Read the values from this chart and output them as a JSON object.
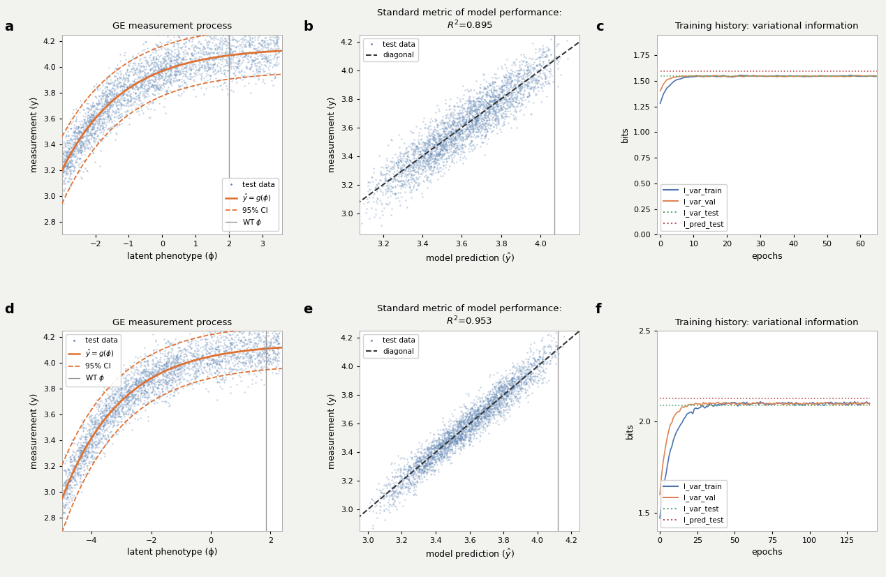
{
  "fig_bg": "#f2f2ee",
  "panel_labels": [
    "a",
    "b",
    "c",
    "d",
    "e",
    "f"
  ],
  "panel_label_fontsize": 14,
  "plot_a": {
    "title": "GE measurement process",
    "xlabel": "latent phenotype (ϕ)",
    "ylabel": "measurement (y)",
    "xlim": [
      -3.0,
      3.6
    ],
    "ylim": [
      2.7,
      4.25
    ],
    "xticks": [
      -2,
      -1,
      0,
      1,
      2,
      3
    ],
    "scatter_color": "#5b82b0",
    "scatter_alpha": 0.35,
    "scatter_s": 3,
    "curve_color": "#e07030",
    "ci_color": "#e07030",
    "wt_x": 2.0,
    "wt_color": "#999999",
    "n_points": 3000,
    "seed": 42,
    "legend_loc": "lower right"
  },
  "plot_b": {
    "title": "Standard metric of model performance:\n$R^2$=0.895",
    "xlabel": "model prediction ($\\hat{y}$)",
    "ylabel": "measurement (y)",
    "xlim": [
      3.08,
      4.2
    ],
    "ylim": [
      2.85,
      4.25
    ],
    "xticks": [
      3.2,
      3.4,
      3.6,
      3.8,
      4.0
    ],
    "scatter_color": "#5b82b0",
    "scatter_alpha": 0.35,
    "scatter_s": 3,
    "diag_color": "#333333",
    "wt_x": 4.07,
    "wt_color": "#999999",
    "n_points": 3000,
    "seed": 43,
    "legend_loc": "upper left"
  },
  "plot_c": {
    "title": "Training history: variational information",
    "xlabel": "epochs",
    "ylabel": "bits",
    "xlim": [
      -1,
      65
    ],
    "ylim": [
      0.0,
      1.95
    ],
    "yticks": [
      0.0,
      0.25,
      0.5,
      0.75,
      1.0,
      1.25,
      1.5,
      1.75
    ],
    "xticks": [
      0,
      10,
      20,
      30,
      40,
      50,
      60
    ],
    "train_color": "#4c72b0",
    "val_color": "#dd8452",
    "test_color": "#55a868",
    "pred_color": "#c44e52",
    "train_start": 1.28,
    "train_plateau": 1.545,
    "val_start": 1.4,
    "val_plateau": 1.545,
    "test_val": 1.545,
    "pred_val": 1.595,
    "n_epochs": 65,
    "legend_loc": "lower left"
  },
  "plot_d": {
    "title": "GE measurement process",
    "xlabel": "latent phenotype (ϕ)",
    "ylabel": "measurement (y)",
    "xlim": [
      -5.0,
      2.4
    ],
    "ylim": [
      2.7,
      4.25
    ],
    "xticks": [
      -4,
      -2,
      0,
      2
    ],
    "scatter_color": "#5b82b0",
    "scatter_alpha": 0.35,
    "scatter_s": 3,
    "curve_color": "#e07030",
    "ci_color": "#e07030",
    "wt_x": 1.85,
    "wt_color": "#999999",
    "n_points": 3000,
    "seed": 44,
    "legend_loc": "upper left"
  },
  "plot_e": {
    "title": "Standard metric of model performance:\n$R^2$=0.953",
    "xlabel": "model prediction ($\\hat{y}$)",
    "ylabel": "measurement (y)",
    "xlim": [
      2.95,
      4.25
    ],
    "ylim": [
      2.85,
      4.25
    ],
    "xticks": [
      3.0,
      3.2,
      3.4,
      3.6,
      3.8,
      4.0,
      4.2
    ],
    "scatter_color": "#5b82b0",
    "scatter_alpha": 0.35,
    "scatter_s": 3,
    "diag_color": "#333333",
    "wt_x": 4.12,
    "wt_color": "#999999",
    "n_points": 3000,
    "seed": 45,
    "legend_loc": "upper left"
  },
  "plot_f": {
    "title": "Training history: variational information",
    "xlabel": "epochs",
    "ylabel": "bits",
    "xlim": [
      -2,
      145
    ],
    "ylim": [
      1.4,
      2.5
    ],
    "yticks": [
      1.5,
      2.0,
      2.5
    ],
    "xticks": [
      0,
      25,
      50,
      75,
      100,
      125
    ],
    "train_color": "#4c72b0",
    "val_color": "#dd8452",
    "test_color": "#55a868",
    "pred_color": "#c44e52",
    "train_start": 1.47,
    "train_plateau": 2.1,
    "val_start": 1.6,
    "val_plateau": 2.1,
    "test_val": 2.09,
    "pred_val": 2.13,
    "n_epochs": 140,
    "legend_loc": "lower left"
  }
}
